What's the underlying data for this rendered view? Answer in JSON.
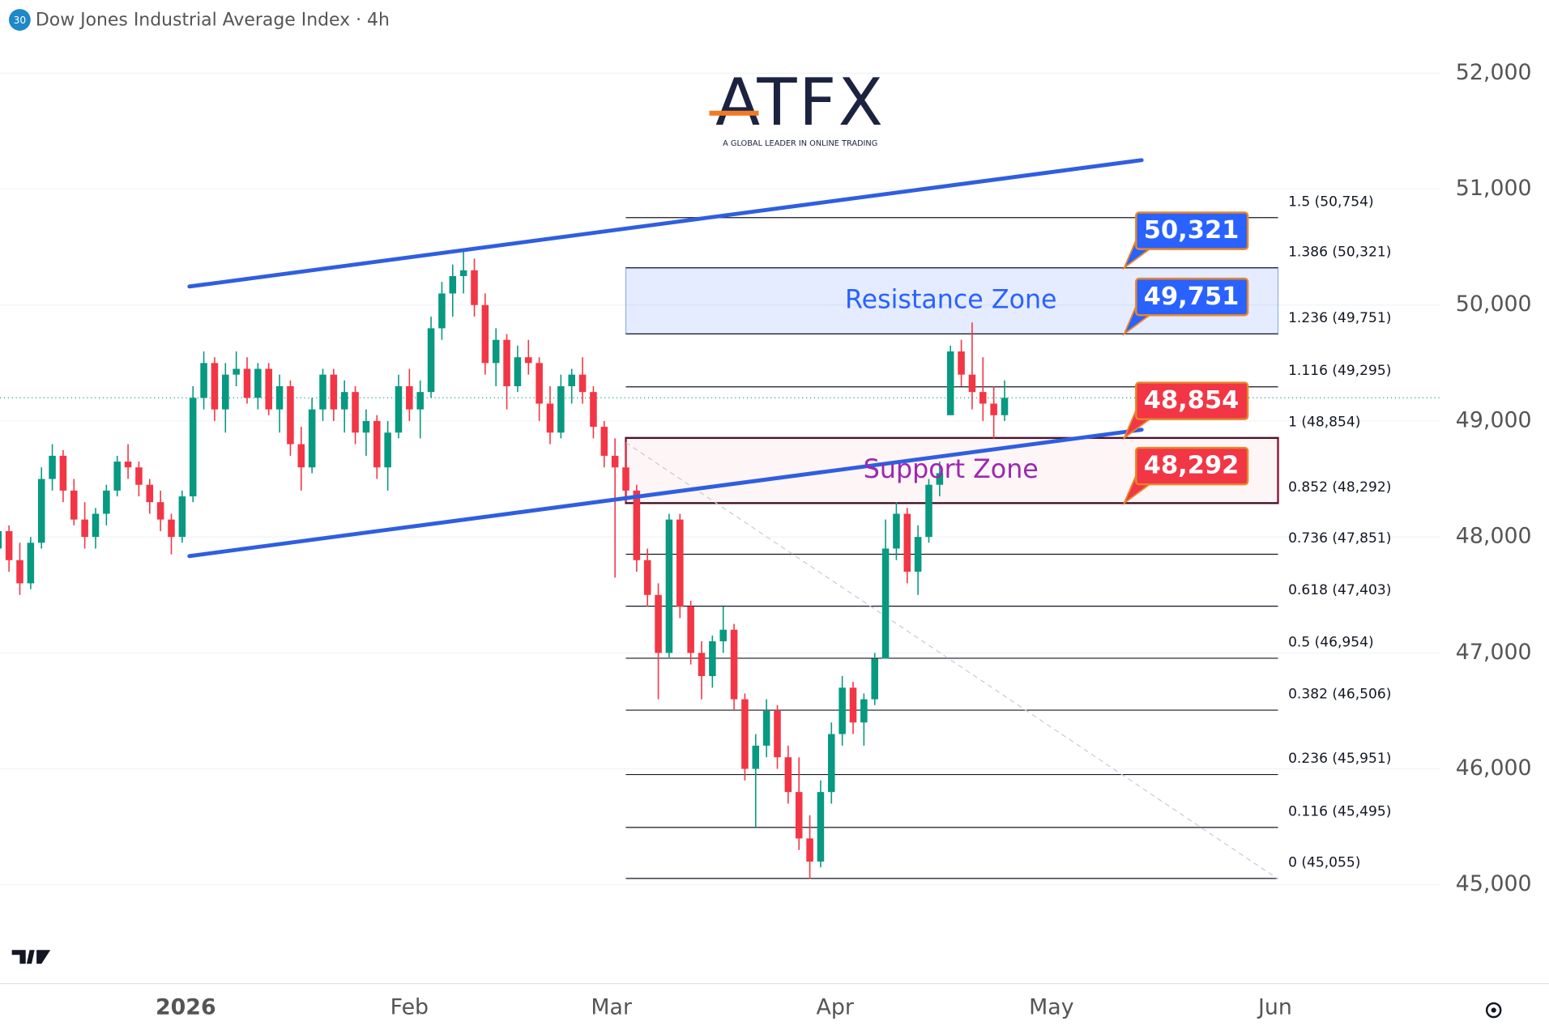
{
  "chart_data": {
    "type": "candlestick",
    "badge": "30",
    "title": "Dow Jones Industrial Average Index · 4h",
    "logo": {
      "name": "ATFX",
      "tagline": "A GLOBAL LEADER IN ONLINE TRADING"
    },
    "up_color": "#089981",
    "down_color": "#f23645",
    "grid": true,
    "xlim": [
      -25.75,
      173.9
    ],
    "ylim": [
      44157,
      52630
    ],
    "xticks": [
      {
        "value": 0,
        "label": "2026"
      },
      {
        "value": 31,
        "label": "Feb"
      },
      {
        "value": 59,
        "label": "Mar"
      },
      {
        "value": 90,
        "label": "Apr"
      },
      {
        "value": 120,
        "label": "May"
      },
      {
        "value": 151,
        "label": "Jun"
      }
    ],
    "yticks": [
      {
        "value": 45000,
        "label": "45,000"
      },
      {
        "value": 46000,
        "label": "46,000"
      },
      {
        "value": 47000,
        "label": "47,000"
      },
      {
        "value": 48000,
        "label": "48,000"
      },
      {
        "value": 49000,
        "label": "49,000"
      },
      {
        "value": 50000,
        "label": "50,000"
      },
      {
        "value": 51000,
        "label": "51,000"
      },
      {
        "value": 52000,
        "label": "52,000"
      }
    ],
    "candles": [
      {
        "x": -26,
        "o": 47900,
        "h": 48100,
        "l": 47800,
        "c": 48050
      },
      {
        "x": -24.5,
        "o": 48050,
        "h": 48100,
        "l": 47700,
        "c": 47800
      },
      {
        "x": -23,
        "o": 47800,
        "h": 47950,
        "l": 47500,
        "c": 47600
      },
      {
        "x": -21.5,
        "o": 47600,
        "h": 48000,
        "l": 47550,
        "c": 47950
      },
      {
        "x": -20,
        "o": 47950,
        "h": 48600,
        "l": 47900,
        "c": 48500
      },
      {
        "x": -18.5,
        "o": 48500,
        "h": 48800,
        "l": 48400,
        "c": 48700
      },
      {
        "x": -17,
        "o": 48700,
        "h": 48750,
        "l": 48300,
        "c": 48400
      },
      {
        "x": -15.5,
        "o": 48400,
        "h": 48500,
        "l": 48100,
        "c": 48150
      },
      {
        "x": -14,
        "o": 48150,
        "h": 48300,
        "l": 47900,
        "c": 48000
      },
      {
        "x": -12.5,
        "o": 48000,
        "h": 48250,
        "l": 47900,
        "c": 48200
      },
      {
        "x": -11,
        "o": 48200,
        "h": 48450,
        "l": 48100,
        "c": 48400
      },
      {
        "x": -9.5,
        "o": 48400,
        "h": 48700,
        "l": 48350,
        "c": 48650
      },
      {
        "x": -8,
        "o": 48650,
        "h": 48800,
        "l": 48500,
        "c": 48600
      },
      {
        "x": -6.5,
        "o": 48600,
        "h": 48650,
        "l": 48350,
        "c": 48450
      },
      {
        "x": -5,
        "o": 48450,
        "h": 48500,
        "l": 48200,
        "c": 48300
      },
      {
        "x": -3.5,
        "o": 48300,
        "h": 48400,
        "l": 48050,
        "c": 48150
      },
      {
        "x": -2,
        "o": 48150,
        "h": 48200,
        "l": 47850,
        "c": 48000
      },
      {
        "x": -0.5,
        "o": 48000,
        "h": 48400,
        "l": 47950,
        "c": 48350
      },
      {
        "x": 1,
        "o": 48350,
        "h": 49300,
        "l": 48300,
        "c": 49200
      },
      {
        "x": 2.5,
        "o": 49200,
        "h": 49600,
        "l": 49100,
        "c": 49500
      },
      {
        "x": 4,
        "o": 49500,
        "h": 49550,
        "l": 49000,
        "c": 49100
      },
      {
        "x": 5.5,
        "o": 49100,
        "h": 49500,
        "l": 48900,
        "c": 49400
      },
      {
        "x": 7,
        "o": 49400,
        "h": 49600,
        "l": 49300,
        "c": 49450
      },
      {
        "x": 8.5,
        "o": 49450,
        "h": 49550,
        "l": 49150,
        "c": 49200
      },
      {
        "x": 10,
        "o": 49200,
        "h": 49500,
        "l": 49100,
        "c": 49450
      },
      {
        "x": 11.5,
        "o": 49450,
        "h": 49500,
        "l": 49050,
        "c": 49100
      },
      {
        "x": 13,
        "o": 49100,
        "h": 49400,
        "l": 48900,
        "c": 49300
      },
      {
        "x": 14.5,
        "o": 49300,
        "h": 49350,
        "l": 48700,
        "c": 48800
      },
      {
        "x": 16,
        "o": 48800,
        "h": 48950,
        "l": 48400,
        "c": 48600
      },
      {
        "x": 17.5,
        "o": 48600,
        "h": 49200,
        "l": 48550,
        "c": 49100
      },
      {
        "x": 19,
        "o": 49100,
        "h": 49450,
        "l": 49000,
        "c": 49400
      },
      {
        "x": 20.5,
        "o": 49400,
        "h": 49450,
        "l": 49000,
        "c": 49100
      },
      {
        "x": 22,
        "o": 49100,
        "h": 49350,
        "l": 48900,
        "c": 49250
      },
      {
        "x": 23.5,
        "o": 49250,
        "h": 49300,
        "l": 48800,
        "c": 48900
      },
      {
        "x": 25,
        "o": 48900,
        "h": 49100,
        "l": 48700,
        "c": 49000
      },
      {
        "x": 26.5,
        "o": 49000,
        "h": 49050,
        "l": 48500,
        "c": 48600
      },
      {
        "x": 28,
        "o": 48600,
        "h": 49000,
        "l": 48400,
        "c": 48900
      },
      {
        "x": 29.5,
        "o": 48900,
        "h": 49400,
        "l": 48850,
        "c": 49300
      },
      {
        "x": 31,
        "o": 49300,
        "h": 49450,
        "l": 49000,
        "c": 49100
      },
      {
        "x": 32.5,
        "o": 49100,
        "h": 49350,
        "l": 48850,
        "c": 49250
      },
      {
        "x": 34,
        "o": 49250,
        "h": 49900,
        "l": 49200,
        "c": 49800
      },
      {
        "x": 35.5,
        "o": 49800,
        "h": 50200,
        "l": 49700,
        "c": 50100
      },
      {
        "x": 37,
        "o": 50100,
        "h": 50350,
        "l": 49900,
        "c": 50250
      },
      {
        "x": 38.5,
        "o": 50250,
        "h": 50480,
        "l": 50100,
        "c": 50300
      },
      {
        "x": 40,
        "o": 50300,
        "h": 50400,
        "l": 49900,
        "c": 50000
      },
      {
        "x": 41.5,
        "o": 50000,
        "h": 50100,
        "l": 49400,
        "c": 49500
      },
      {
        "x": 43,
        "o": 49500,
        "h": 49800,
        "l": 49300,
        "c": 49700
      },
      {
        "x": 44.5,
        "o": 49700,
        "h": 49750,
        "l": 49100,
        "c": 49300
      },
      {
        "x": 46,
        "o": 49300,
        "h": 49650,
        "l": 49250,
        "c": 49550
      },
      {
        "x": 47.5,
        "o": 49550,
        "h": 49700,
        "l": 49400,
        "c": 49500
      },
      {
        "x": 49,
        "o": 49500,
        "h": 49550,
        "l": 49000,
        "c": 49150
      },
      {
        "x": 50.5,
        "o": 49150,
        "h": 49300,
        "l": 48800,
        "c": 48900
      },
      {
        "x": 52,
        "o": 48900,
        "h": 49400,
        "l": 48850,
        "c": 49300
      },
      {
        "x": 53.5,
        "o": 49300,
        "h": 49450,
        "l": 49150,
        "c": 49400
      },
      {
        "x": 55,
        "o": 49400,
        "h": 49550,
        "l": 49150,
        "c": 49250
      },
      {
        "x": 56.5,
        "o": 49250,
        "h": 49300,
        "l": 48850,
        "c": 48950
      },
      {
        "x": 58,
        "o": 48950,
        "h": 49000,
        "l": 48600,
        "c": 48700
      },
      {
        "x": 59.5,
        "o": 48700,
        "h": 48850,
        "l": 47650,
        "c": 48600
      },
      {
        "x": 61,
        "o": 48600,
        "h": 48800,
        "l": 48300,
        "c": 48400
      },
      {
        "x": 62.5,
        "o": 48400,
        "h": 48450,
        "l": 47700,
        "c": 47800
      },
      {
        "x": 64,
        "o": 47800,
        "h": 47900,
        "l": 47400,
        "c": 47500
      },
      {
        "x": 65.5,
        "o": 47500,
        "h": 47600,
        "l": 46600,
        "c": 47000
      },
      {
        "x": 67,
        "o": 47000,
        "h": 48200,
        "l": 46950,
        "c": 48150
      },
      {
        "x": 68.5,
        "o": 48150,
        "h": 48200,
        "l": 47300,
        "c": 47400
      },
      {
        "x": 70,
        "o": 47400,
        "h": 47450,
        "l": 46900,
        "c": 47000
      },
      {
        "x": 71.5,
        "o": 47000,
        "h": 47100,
        "l": 46600,
        "c": 46800
      },
      {
        "x": 73,
        "o": 46800,
        "h": 47150,
        "l": 46700,
        "c": 47100
      },
      {
        "x": 74.5,
        "o": 47100,
        "h": 47400,
        "l": 47000,
        "c": 47200
      },
      {
        "x": 76,
        "o": 47200,
        "h": 47250,
        "l": 46500,
        "c": 46600
      },
      {
        "x": 77.5,
        "o": 46600,
        "h": 46650,
        "l": 45900,
        "c": 46000
      },
      {
        "x": 79,
        "o": 46000,
        "h": 46300,
        "l": 45500,
        "c": 46200
      },
      {
        "x": 80.5,
        "o": 46200,
        "h": 46600,
        "l": 46100,
        "c": 46500
      },
      {
        "x": 82,
        "o": 46500,
        "h": 46550,
        "l": 46000,
        "c": 46100
      },
      {
        "x": 83.5,
        "o": 46100,
        "h": 46200,
        "l": 45700,
        "c": 45800
      },
      {
        "x": 85,
        "o": 45800,
        "h": 46100,
        "l": 45300,
        "c": 45400
      },
      {
        "x": 86.5,
        "o": 45400,
        "h": 45600,
        "l": 45050,
        "c": 45200
      },
      {
        "x": 88,
        "o": 45200,
        "h": 45900,
        "l": 45150,
        "c": 45800
      },
      {
        "x": 89.5,
        "o": 45800,
        "h": 46400,
        "l": 45700,
        "c": 46300
      },
      {
        "x": 91,
        "o": 46300,
        "h": 46800,
        "l": 46200,
        "c": 46700
      },
      {
        "x": 92.5,
        "o": 46700,
        "h": 46750,
        "l": 46300,
        "c": 46400
      },
      {
        "x": 94,
        "o": 46400,
        "h": 46650,
        "l": 46200,
        "c": 46600
      },
      {
        "x": 95.5,
        "o": 46600,
        "h": 47000,
        "l": 46550,
        "c": 46950
      },
      {
        "x": 97,
        "o": 46950,
        "h": 48150,
        "l": 46950,
        "c": 47900
      },
      {
        "x": 98.5,
        "o": 47900,
        "h": 48300,
        "l": 47800,
        "c": 48200
      },
      {
        "x": 100,
        "o": 48200,
        "h": 48250,
        "l": 47600,
        "c": 47700
      },
      {
        "x": 101.5,
        "o": 47700,
        "h": 48100,
        "l": 47500,
        "c": 48000
      },
      {
        "x": 103,
        "o": 48000,
        "h": 48500,
        "l": 47950,
        "c": 48450
      },
      {
        "x": 104.5,
        "o": 48450,
        "h": 48650,
        "l": 48350,
        "c": 48550
      },
      {
        "x": 106,
        "o": 49050,
        "h": 49650,
        "l": 49050,
        "c": 49600
      },
      {
        "x": 107.5,
        "o": 49600,
        "h": 49700,
        "l": 49300,
        "c": 49400
      },
      {
        "x": 109,
        "o": 49400,
        "h": 49850,
        "l": 49100,
        "c": 49250
      },
      {
        "x": 110.5,
        "o": 49250,
        "h": 49550,
        "l": 49000,
        "c": 49150
      },
      {
        "x": 112,
        "o": 49150,
        "h": 49300,
        "l": 48850,
        "c": 49050
      },
      {
        "x": 113.5,
        "o": 49050,
        "h": 49350,
        "l": 49000,
        "c": 49200
      }
    ],
    "channel_color": "#2f5ee0",
    "channels": [
      {
        "x": [
          0.5,
          132.5
        ],
        "y": [
          50160,
          51250
        ]
      },
      {
        "x": [
          0.5,
          132.5
        ],
        "y": [
          47835,
          48925
        ]
      }
    ],
    "projection": {
      "x": [
        61,
        151.4
      ],
      "y": [
        48814,
        45050
      ]
    },
    "fib_x": [
      61,
      151.4
    ],
    "fib_levels": [
      {
        "value": 50754,
        "label": "1.5 (50,754)"
      },
      {
        "value": 50321,
        "label": "1.386 (50,321)"
      },
      {
        "value": 49751,
        "label": "1.236 (49,751)"
      },
      {
        "value": 49295,
        "label": "1.116 (49,295)"
      },
      {
        "value": 48854,
        "label": "1 (48,854)"
      },
      {
        "value": 48292,
        "label": "0.852 (48,292)"
      },
      {
        "value": 47851,
        "label": "0.736 (47,851)"
      },
      {
        "value": 47403,
        "label": "0.618 (47,403)"
      },
      {
        "value": 46954,
        "label": "0.5 (46,954)"
      },
      {
        "value": 46506,
        "label": "0.382 (46,506)"
      },
      {
        "value": 45951,
        "label": "0.236 (45,951)"
      },
      {
        "value": 45495,
        "label": "0.116 (45,495)"
      },
      {
        "value": 45055,
        "label": "0 (45,055)"
      }
    ],
    "zones": [
      {
        "label": "Resistance Zone",
        "range": [
          49751,
          50321
        ],
        "color": "#2962ff"
      },
      {
        "label": "Support Zone",
        "range": [
          48292,
          48854
        ],
        "color": "#9c27b0"
      }
    ],
    "callouts": [
      {
        "value": 50321,
        "label": "50,321",
        "color": "#2962ff"
      },
      {
        "value": 49751,
        "label": "49,751",
        "color": "#2962ff"
      },
      {
        "value": 48854,
        "label": "48,854",
        "color": "#f23645"
      },
      {
        "value": 48292,
        "label": "48,292",
        "color": "#f23645"
      }
    ]
  }
}
